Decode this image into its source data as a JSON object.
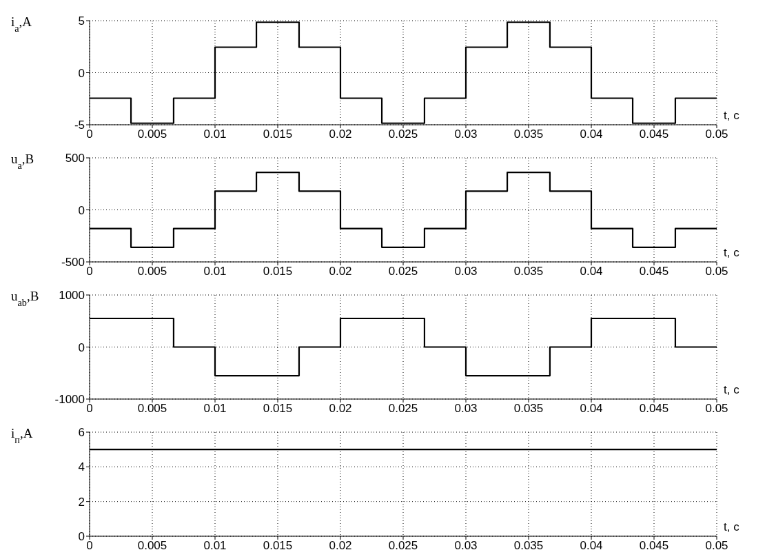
{
  "chart_data": [
    {
      "type": "step",
      "ylabel": "i$_{a}$,A",
      "xlabel": "t, c",
      "x": [
        0,
        0.0033,
        0.0067,
        0.01,
        0.0133,
        0.0167,
        0.02,
        0.0233,
        0.0267,
        0.03,
        0.0333,
        0.0367,
        0.04,
        0.0433,
        0.0467,
        0.05
      ],
      "series": [
        {
          "color": "#000000",
          "values": [
            -2.45,
            -4.85,
            -2.45,
            2.45,
            4.85,
            2.45,
            -2.45,
            -4.85,
            -2.45,
            2.45,
            4.85,
            2.45,
            -2.45,
            -4.85,
            -2.45,
            -2.45
          ]
        }
      ],
      "xlim": [
        0,
        0.05
      ],
      "xticks": [
        0,
        0.005,
        0.01,
        0.015,
        0.02,
        0.025,
        0.03,
        0.035,
        0.04,
        0.045,
        0.05
      ],
      "ylim": [
        -5,
        5
      ],
      "yticks": [
        -5,
        0,
        5
      ],
      "grid": true
    },
    {
      "type": "step",
      "ylabel": "u$_{a}$,B",
      "xlabel": "t, c",
      "x": [
        0,
        0.0033,
        0.0067,
        0.01,
        0.0133,
        0.0167,
        0.02,
        0.0233,
        0.0267,
        0.03,
        0.0333,
        0.0367,
        0.04,
        0.0433,
        0.0467,
        0.05
      ],
      "series": [
        {
          "color": "#000000",
          "values": [
            -180,
            -360,
            -180,
            180,
            360,
            180,
            -180,
            -360,
            -180,
            180,
            360,
            180,
            -180,
            -360,
            -180,
            -180
          ]
        }
      ],
      "xlim": [
        0,
        0.05
      ],
      "xticks": [
        0,
        0.005,
        0.01,
        0.015,
        0.02,
        0.025,
        0.03,
        0.035,
        0.04,
        0.045,
        0.05
      ],
      "ylim": [
        -500,
        500
      ],
      "yticks": [
        -500,
        0,
        500
      ],
      "grid": true
    },
    {
      "type": "step",
      "ylabel": "u$_{ab}$,B",
      "xlabel": "t, c",
      "x": [
        0,
        0.0067,
        0.01,
        0.0167,
        0.02,
        0.0267,
        0.03,
        0.0367,
        0.04,
        0.0467,
        0.05
      ],
      "series": [
        {
          "color": "#000000",
          "values": [
            550,
            0,
            -550,
            0,
            550,
            0,
            -550,
            0,
            550,
            0,
            0
          ]
        }
      ],
      "xlim": [
        0,
        0.05
      ],
      "xticks": [
        0,
        0.005,
        0.01,
        0.015,
        0.02,
        0.025,
        0.03,
        0.035,
        0.04,
        0.045,
        0.05
      ],
      "ylim": [
        -1000,
        1000
      ],
      "yticks": [
        -1000,
        0,
        1000
      ],
      "grid": true
    },
    {
      "type": "step",
      "ylabel": "i$_{п}$,A",
      "xlabel": "t, c",
      "x": [
        0,
        0.05
      ],
      "series": [
        {
          "color": "#000000",
          "values": [
            5,
            5
          ]
        }
      ],
      "xlim": [
        0,
        0.05
      ],
      "xticks": [
        0,
        0.005,
        0.01,
        0.015,
        0.02,
        0.025,
        0.03,
        0.035,
        0.04,
        0.045,
        0.05
      ],
      "ylim": [
        0,
        6
      ],
      "yticks": [
        0,
        2,
        4,
        6
      ],
      "grid": true
    }
  ]
}
